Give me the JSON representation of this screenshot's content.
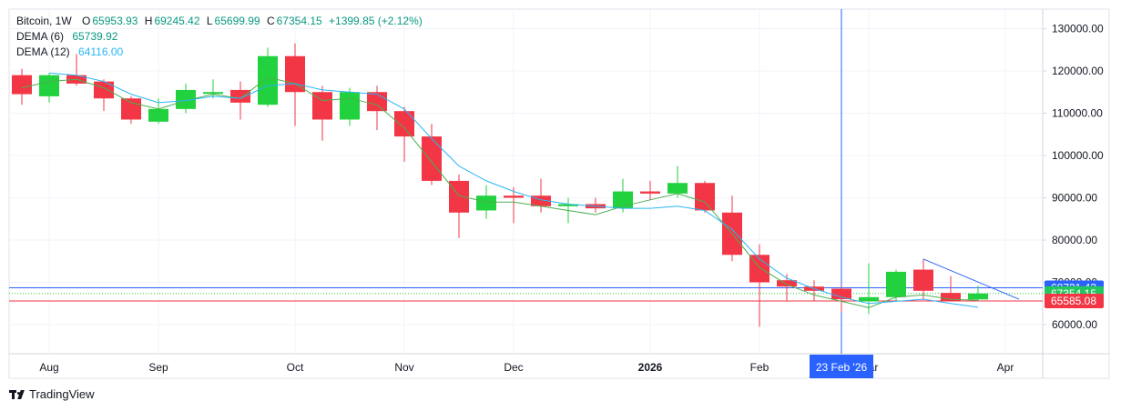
{
  "legend": {
    "symbol": "Bitcoin, 1W",
    "open_label": "O",
    "open": "65953.93",
    "high_label": "H",
    "high": "69245.42",
    "low_label": "L",
    "low": "65699.99",
    "close_label": "C",
    "close": "67354.15",
    "change": "+1399.85 (+2.12%)",
    "dema6_label": "DEMA (6)",
    "dema6_value": "65739.92",
    "dema12_label": "DEMA (12)",
    "dema12_value": "64116.00"
  },
  "branding": {
    "name": "TradingView"
  },
  "crosshair": {
    "date_label": "23 Feb '26",
    "price_label": "68721.43"
  },
  "price_badges": [
    {
      "label": "68721.43",
      "color": "#2962ff"
    },
    {
      "label": "67354.15",
      "color": "#22c55e"
    },
    {
      "label": "65585.08",
      "color": "#f23645"
    }
  ],
  "colors": {
    "up": "#22d13e",
    "down": "#f23645",
    "dema6": "#4caf50",
    "dema12": "#29b6f6",
    "crosshair": "#2962ff"
  },
  "chart_data": {
    "type": "candlestick",
    "title": "Bitcoin, 1W",
    "y_ticks": [
      60000,
      70000,
      80000,
      90000,
      100000,
      110000,
      120000,
      130000
    ],
    "y_tick_labels": [
      "60000.00",
      "70000.00",
      "80000.00",
      "90000.00",
      "100000.00",
      "110000.00",
      "120000.00",
      "130000.00"
    ],
    "x_tick_labels": [
      "Aug",
      "Sep",
      "Oct",
      "Nov",
      "Dec",
      "2026",
      "Feb",
      "Mar",
      "Apr"
    ],
    "x_tick_week_index": [
      1,
      5,
      10,
      14,
      18,
      23,
      27,
      31,
      36
    ],
    "ylim": [
      55000,
      135000
    ],
    "candles": [
      {
        "o": 119000,
        "h": 120500,
        "l": 112000,
        "c": 114500
      },
      {
        "o": 114000,
        "h": 119500,
        "l": 112500,
        "c": 119000
      },
      {
        "o": 119000,
        "h": 124000,
        "l": 116500,
        "c": 117000
      },
      {
        "o": 117500,
        "h": 118000,
        "l": 110500,
        "c": 113500
      },
      {
        "o": 113500,
        "h": 114000,
        "l": 107500,
        "c": 108500
      },
      {
        "o": 108000,
        "h": 113500,
        "l": 107500,
        "c": 111000
      },
      {
        "o": 111000,
        "h": 117000,
        "l": 110000,
        "c": 115500
      },
      {
        "o": 115000,
        "h": 118000,
        "l": 113500,
        "c": 115000
      },
      {
        "o": 115500,
        "h": 117500,
        "l": 108500,
        "c": 112500
      },
      {
        "o": 112000,
        "h": 125500,
        "l": 111500,
        "c": 123500
      },
      {
        "o": 123500,
        "h": 126500,
        "l": 107000,
        "c": 115000
      },
      {
        "o": 115000,
        "h": 116500,
        "l": 103500,
        "c": 108500
      },
      {
        "o": 108500,
        "h": 116000,
        "l": 107000,
        "c": 115000
      },
      {
        "o": 115000,
        "h": 116500,
        "l": 106000,
        "c": 110500
      },
      {
        "o": 110500,
        "h": 111500,
        "l": 98500,
        "c": 104500
      },
      {
        "o": 104500,
        "h": 107500,
        "l": 93000,
        "c": 94000
      },
      {
        "o": 94000,
        "h": 95500,
        "l": 80500,
        "c": 86500
      },
      {
        "o": 87000,
        "h": 93000,
        "l": 85000,
        "c": 90500
      },
      {
        "o": 90500,
        "h": 92500,
        "l": 84000,
        "c": 90000
      },
      {
        "o": 90500,
        "h": 94500,
        "l": 86500,
        "c": 88000
      },
      {
        "o": 88000,
        "h": 90000,
        "l": 84000,
        "c": 88500
      },
      {
        "o": 88500,
        "h": 90000,
        "l": 86500,
        "c": 87500
      },
      {
        "o": 87500,
        "h": 94500,
        "l": 86500,
        "c": 91500
      },
      {
        "o": 91500,
        "h": 94000,
        "l": 89500,
        "c": 91000
      },
      {
        "o": 91000,
        "h": 97500,
        "l": 90000,
        "c": 93500
      },
      {
        "o": 93500,
        "h": 94000,
        "l": 86500,
        "c": 87000
      },
      {
        "o": 86500,
        "h": 90500,
        "l": 75000,
        "c": 76500
      },
      {
        "o": 76500,
        "h": 79000,
        "l": 59500,
        "c": 70000
      },
      {
        "o": 70500,
        "h": 72000,
        "l": 65500,
        "c": 69000
      },
      {
        "o": 69000,
        "h": 70500,
        "l": 65500,
        "c": 68000
      },
      {
        "o": 68500,
        "h": 69000,
        "l": 63000,
        "c": 66000
      },
      {
        "o": 65500,
        "h": 74500,
        "l": 62500,
        "c": 66500
      },
      {
        "o": 66500,
        "h": 73000,
        "l": 65500,
        "c": 72500
      },
      {
        "o": 73000,
        "h": 75500,
        "l": 66000,
        "c": 68000
      },
      {
        "o": 67500,
        "h": 71500,
        "l": 65500,
        "c": 65700
      },
      {
        "o": 65954,
        "h": 69245,
        "l": 65700,
        "c": 67354
      }
    ],
    "series": [
      {
        "name": "DEMA (6)",
        "values": [
          116000,
          117500,
          118000,
          116000,
          112500,
          111000,
          113000,
          114500,
          113500,
          118500,
          117000,
          113000,
          113500,
          112000,
          106500,
          98500,
          90500,
          89000,
          89000,
          88000,
          87000,
          86000,
          88000,
          89500,
          91000,
          89000,
          81500,
          73500,
          69500,
          67000,
          65500,
          64000,
          66500,
          67000,
          66000,
          65740
        ]
      },
      {
        "name": "DEMA (12)",
        "values": [
          null,
          119500,
          119000,
          117500,
          114500,
          112500,
          113000,
          114000,
          113500,
          116500,
          117000,
          115500,
          115000,
          114500,
          111000,
          104000,
          97500,
          94000,
          91500,
          89500,
          88500,
          88000,
          87500,
          87500,
          88000,
          87000,
          82500,
          75500,
          71000,
          68500,
          66500,
          65000,
          65500,
          66000,
          65000,
          64116
        ]
      }
    ],
    "horizontal_lines": [
      68721.43,
      67354.15,
      65585.08
    ],
    "trend_line": {
      "from_week": 33,
      "from_price": 75500,
      "to_week": 36.5,
      "to_price": 66000
    },
    "crosshair_week": 30,
    "grid": true
  }
}
